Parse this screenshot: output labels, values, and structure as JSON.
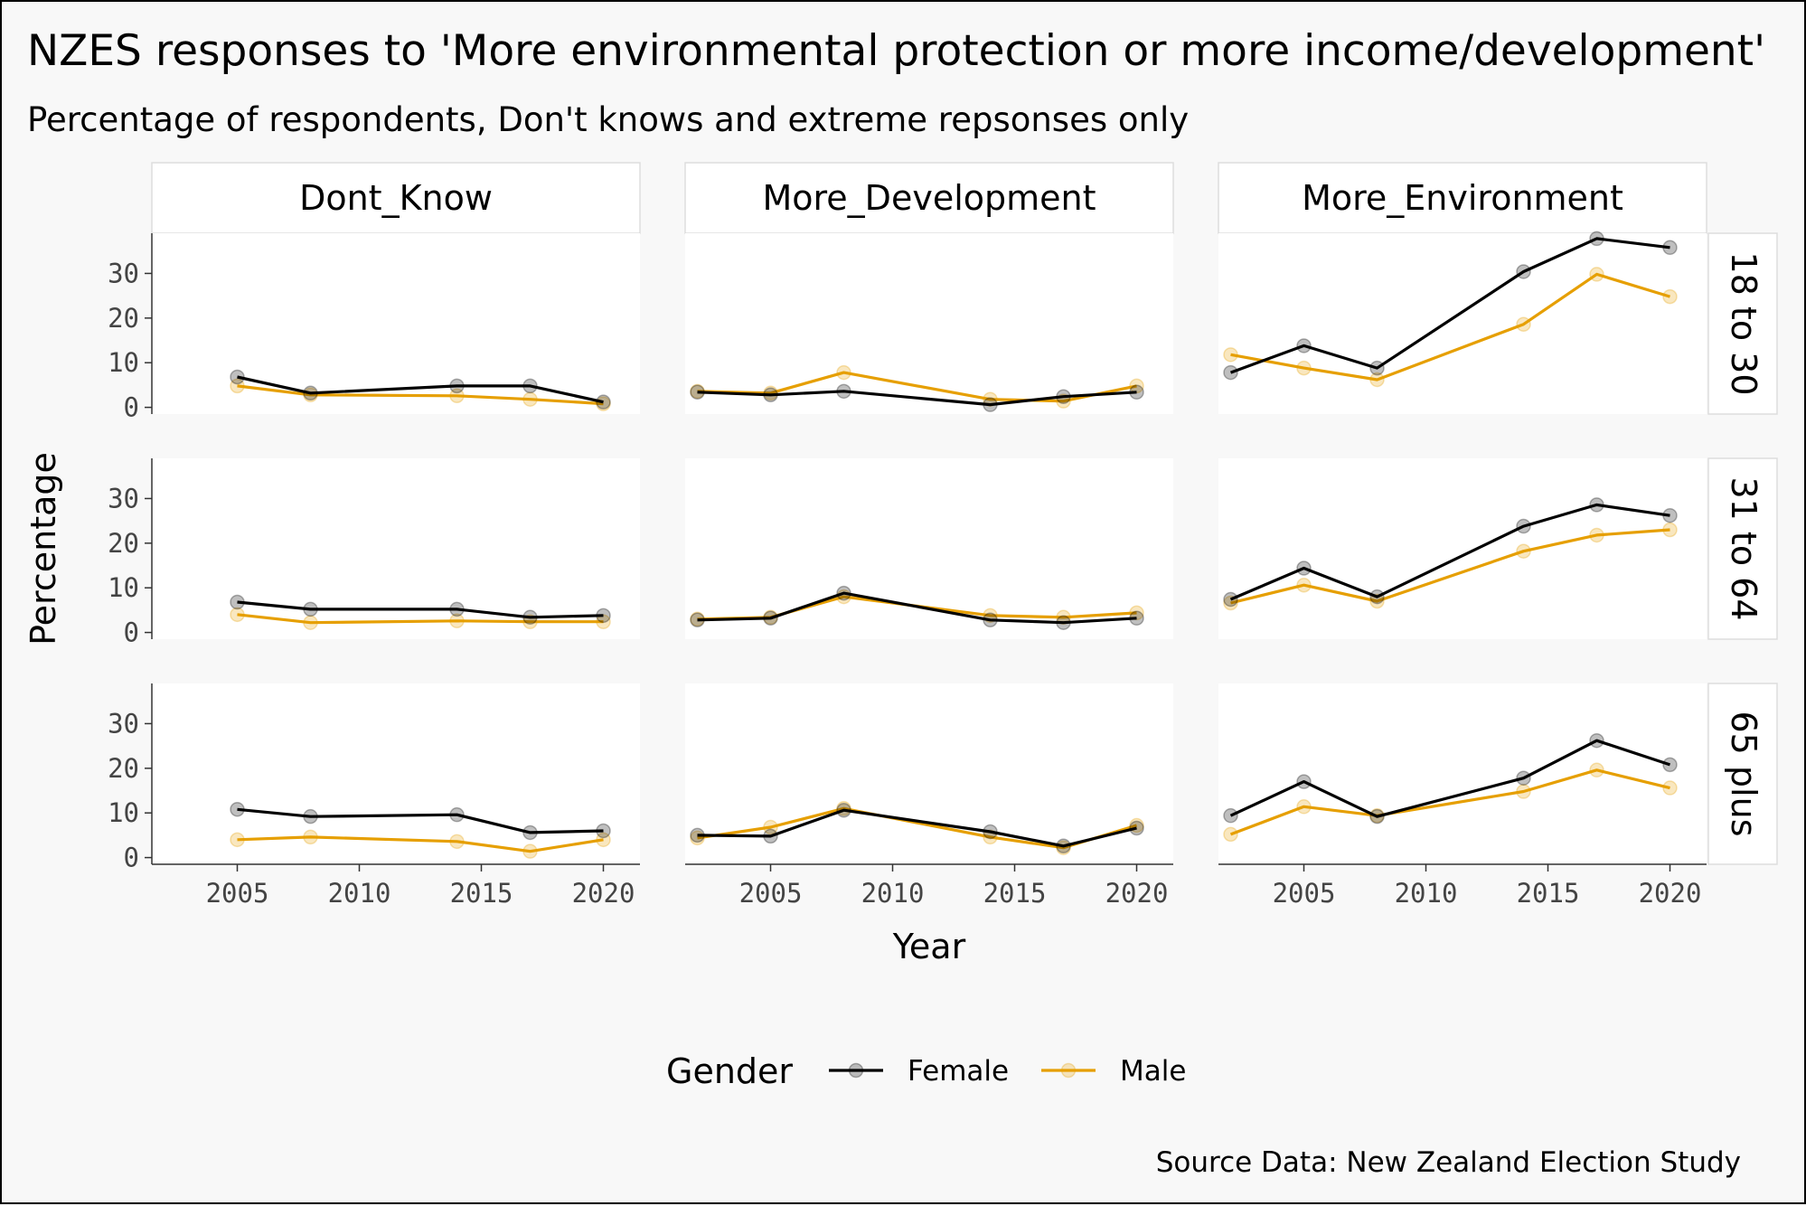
{
  "title": "NZES responses to 'More environmental protection or more income/development'",
  "subtitle": "Percentage of respondents, Don't knows and extreme repsonses only",
  "caption": "Source Data: New Zealand Election Study",
  "colors": {
    "Female": "#000000",
    "Male": "#E69F00",
    "panel": "#ffffff",
    "background": "#f8f8f8",
    "strip_border": "#dddddd"
  },
  "chart_data": {
    "type": "line",
    "facet_columns": [
      "Dont_Know",
      "More_Development",
      "More_Environment"
    ],
    "facet_rows": [
      "18 to 30",
      "31 to 64",
      "65 plus"
    ],
    "xlabel": "Year",
    "ylabel": "Percentage",
    "xlim": [
      2001.5,
      2021.5
    ],
    "ylim": [
      -1.5,
      39
    ],
    "x_ticks": [
      2005,
      2010,
      2015,
      2020
    ],
    "y_ticks": [
      0,
      10,
      20,
      30
    ],
    "grid": false,
    "legend": {
      "title": "Gender",
      "position": "bottom",
      "entries": [
        "Female",
        "Male"
      ]
    },
    "panels": [
      {
        "column": "Dont_Know",
        "row": "18 to 30",
        "series": [
          {
            "name": "Female",
            "x": [
              2005,
              2008,
              2014,
              2017,
              2020
            ],
            "y": [
              6.8,
              3.2,
              4.8,
              4.8,
              1.2
            ]
          },
          {
            "name": "Male",
            "x": [
              2005,
              2008,
              2014,
              2017,
              2020
            ],
            "y": [
              4.8,
              2.8,
              2.6,
              1.8,
              0.8
            ]
          }
        ]
      },
      {
        "column": "More_Development",
        "row": "18 to 30",
        "series": [
          {
            "name": "Female",
            "x": [
              2002,
              2005,
              2008,
              2014,
              2017,
              2020
            ],
            "y": [
              3.4,
              2.8,
              3.6,
              0.6,
              2.4,
              3.4
            ]
          },
          {
            "name": "Male",
            "x": [
              2002,
              2005,
              2008,
              2014,
              2017,
              2020
            ],
            "y": [
              3.6,
              3.2,
              7.8,
              1.8,
              1.4,
              4.8
            ]
          }
        ]
      },
      {
        "column": "More_Environment",
        "row": "18 to 30",
        "series": [
          {
            "name": "Female",
            "x": [
              2002,
              2005,
              2008,
              2014,
              2017,
              2020
            ],
            "y": [
              7.8,
              13.8,
              8.8,
              30.4,
              37.8,
              35.8
            ]
          },
          {
            "name": "Male",
            "x": [
              2002,
              2005,
              2008,
              2014,
              2017,
              2020
            ],
            "y": [
              11.8,
              8.8,
              6.2,
              18.6,
              29.8,
              24.8
            ]
          }
        ]
      },
      {
        "column": "Dont_Know",
        "row": "31 to 64",
        "series": [
          {
            "name": "Female",
            "x": [
              2005,
              2008,
              2014,
              2017,
              2020
            ],
            "y": [
              6.8,
              5.2,
              5.2,
              3.4,
              3.8
            ]
          },
          {
            "name": "Male",
            "x": [
              2005,
              2008,
              2014,
              2017,
              2020
            ],
            "y": [
              4.0,
              2.2,
              2.6,
              2.4,
              2.4
            ]
          }
        ]
      },
      {
        "column": "More_Development",
        "row": "31 to 64",
        "series": [
          {
            "name": "Female",
            "x": [
              2002,
              2005,
              2008,
              2014,
              2017,
              2020
            ],
            "y": [
              2.8,
              3.2,
              8.8,
              2.8,
              2.2,
              3.2
            ]
          },
          {
            "name": "Male",
            "x": [
              2002,
              2005,
              2008,
              2014,
              2017,
              2020
            ],
            "y": [
              3.0,
              3.4,
              8.0,
              3.8,
              3.4,
              4.4
            ]
          }
        ]
      },
      {
        "column": "More_Environment",
        "row": "31 to 64",
        "series": [
          {
            "name": "Female",
            "x": [
              2002,
              2005,
              2008,
              2014,
              2017,
              2020
            ],
            "y": [
              7.4,
              14.4,
              8.0,
              23.8,
              28.6,
              26.2
            ]
          },
          {
            "name": "Male",
            "x": [
              2002,
              2005,
              2008,
              2014,
              2017,
              2020
            ],
            "y": [
              6.6,
              10.6,
              7.0,
              18.2,
              21.8,
              23.0
            ]
          }
        ]
      },
      {
        "column": "Dont_Know",
        "row": "65 plus",
        "series": [
          {
            "name": "Female",
            "x": [
              2005,
              2008,
              2014,
              2017,
              2020
            ],
            "y": [
              10.8,
              9.2,
              9.6,
              5.6,
              6.0
            ]
          },
          {
            "name": "Male",
            "x": [
              2005,
              2008,
              2014,
              2017,
              2020
            ],
            "y": [
              4.0,
              4.6,
              3.6,
              1.4,
              4.0
            ]
          }
        ]
      },
      {
        "column": "More_Development",
        "row": "65 plus",
        "series": [
          {
            "name": "Female",
            "x": [
              2002,
              2005,
              2008,
              2014,
              2017,
              2020
            ],
            "y": [
              5.0,
              4.8,
              10.6,
              5.8,
              2.6,
              6.6
            ]
          },
          {
            "name": "Male",
            "x": [
              2002,
              2005,
              2008,
              2014,
              2017,
              2020
            ],
            "y": [
              4.4,
              6.8,
              11.0,
              4.6,
              2.2,
              7.2
            ]
          }
        ]
      },
      {
        "column": "More_Environment",
        "row": "65 plus",
        "series": [
          {
            "name": "Female",
            "x": [
              2002,
              2005,
              2008,
              2014,
              2017,
              2020
            ],
            "y": [
              9.4,
              17.0,
              9.2,
              17.8,
              26.2,
              20.8
            ]
          },
          {
            "name": "Male",
            "x": [
              2002,
              2005,
              2008,
              2014,
              2017,
              2020
            ],
            "y": [
              5.2,
              11.4,
              9.4,
              14.8,
              19.6,
              15.6
            ]
          }
        ]
      }
    ]
  }
}
